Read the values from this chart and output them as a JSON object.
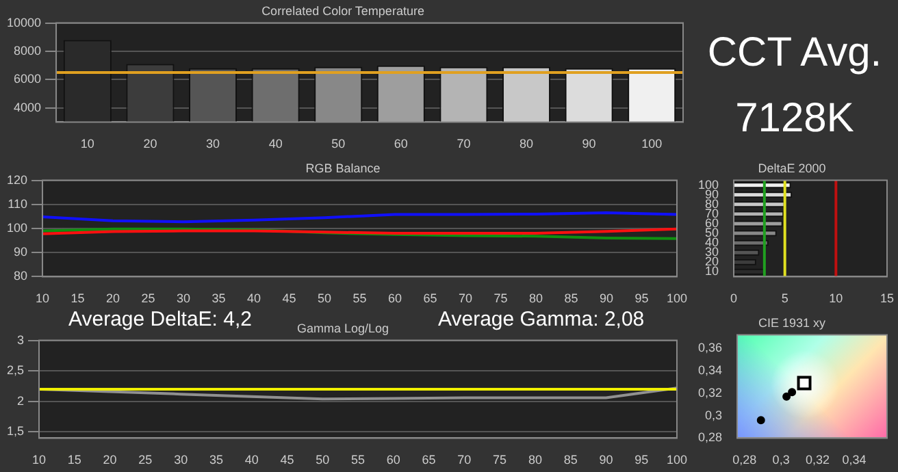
{
  "chart_data": [
    {
      "type": "bar",
      "title": "Correlated Color Temperature",
      "categories": [
        "10",
        "20",
        "30",
        "40",
        "50",
        "60",
        "70",
        "80",
        "90",
        "100"
      ],
      "values": [
        8800,
        7100,
        6800,
        6800,
        6900,
        7000,
        6900,
        6900,
        6800,
        6800
      ],
      "colors": [
        "#2a2a2a",
        "#3c3c3c",
        "#555555",
        "#6e6e6e",
        "#888888",
        "#9e9e9e",
        "#b4b4b4",
        "#c8c8c8",
        "#dcdcdc",
        "#f0f0f0"
      ],
      "ylim": [
        3000,
        10000
      ],
      "yticks": [
        4000,
        6000,
        8000,
        10000
      ],
      "grid": "y",
      "ref_lines": [
        {
          "axis": "y",
          "value": 6500,
          "color": "#e0a020"
        }
      ]
    },
    {
      "type": "other",
      "title": "CCT Avg.",
      "subtitle": "7128K"
    },
    {
      "type": "line",
      "title": "RGB Balance",
      "x": [
        10,
        20,
        30,
        40,
        50,
        60,
        70,
        80,
        90,
        100
      ],
      "xlim": [
        10,
        100
      ],
      "xticks": [
        10,
        15,
        20,
        25,
        30,
        35,
        40,
        45,
        50,
        55,
        60,
        65,
        70,
        75,
        80,
        85,
        90,
        95,
        100
      ],
      "ylim": [
        80,
        120
      ],
      "yticks": [
        80,
        90,
        100,
        110,
        120
      ],
      "grid": "y",
      "marker": "none",
      "line_style": "solid",
      "series": [
        {
          "color": "#1010ff",
          "values": [
            104.8,
            103.2,
            102.8,
            103.5,
            104.5,
            105.8,
            105.8,
            106,
            106.5,
            105.8
          ]
        },
        {
          "color": "#ff1010",
          "values": [
            97.8,
            98.7,
            99,
            99,
            98.5,
            98,
            98,
            98,
            98.8,
            99.8
          ]
        },
        {
          "color": "#109010",
          "values": [
            99,
            99.8,
            99.8,
            99.4,
            98.2,
            97.5,
            97,
            96.8,
            96,
            95.8
          ]
        }
      ]
    },
    {
      "type": "bar",
      "orientation": "horizontal",
      "title": "DeltaE 2000",
      "categories": [
        "100",
        "90",
        "80",
        "70",
        "60",
        "50",
        "40",
        "30",
        "20",
        "10"
      ],
      "values": [
        5.6,
        5.7,
        5.0,
        4.9,
        4.8,
        4.2,
        3.4,
        2.5,
        2.2,
        3.0
      ],
      "colors": [
        "#f0f0f0",
        "#dcdcdc",
        "#c8c8c8",
        "#b4b4b4",
        "#9e9e9e",
        "#888888",
        "#6e6e6e",
        "#555555",
        "#3c3c3c",
        "#2a2a2a"
      ],
      "xlim": [
        0,
        15
      ],
      "xticks": [
        0,
        5,
        10,
        15
      ],
      "grid": false,
      "ref_lines": [
        {
          "axis": "x",
          "value": 3,
          "color": "#20a020"
        },
        {
          "axis": "x",
          "value": 5,
          "color": "#e0e020"
        },
        {
          "axis": "x",
          "value": 10,
          "color": "#c01010"
        }
      ]
    },
    {
      "type": "line",
      "title": "Gamma Log/Log",
      "annotations": [
        "Average DeltaE: 4,2",
        "Average Gamma: 2,08"
      ],
      "x": [
        10,
        20,
        30,
        40,
        50,
        60,
        70,
        80,
        90,
        100
      ],
      "xlim": [
        10,
        100
      ],
      "xticks": [
        10,
        15,
        20,
        25,
        30,
        35,
        40,
        45,
        50,
        55,
        60,
        65,
        70,
        75,
        80,
        85,
        90,
        95,
        100
      ],
      "ylim": [
        1.4,
        3
      ],
      "yticks": [
        {
          "value": 1.5,
          "label": "1,5"
        },
        2,
        {
          "value": 2.5,
          "label": "2,5"
        },
        3
      ],
      "grid": "y",
      "marker": "none",
      "line_style": "solid",
      "series": [
        {
          "color": "#909090",
          "values": [
            2.2,
            2.16,
            2.12,
            2.08,
            2.04,
            2.05,
            2.06,
            2.06,
            2.06,
            2.22
          ]
        }
      ],
      "ref_lines": [
        {
          "axis": "y",
          "value": 2.2,
          "color": "#f0f000"
        }
      ]
    },
    {
      "type": "scatter",
      "title": "CIE 1931 xy",
      "xlim": [
        0.276,
        0.358
      ],
      "xticks": [
        {
          "value": 0.28,
          "label": "0,28"
        },
        {
          "value": 0.3,
          "label": "0,3"
        },
        {
          "value": 0.32,
          "label": "0,32"
        },
        {
          "value": 0.34,
          "label": "0,34"
        }
      ],
      "ylim": [
        0.28,
        0.372
      ],
      "yticks": [
        {
          "value": 0.28,
          "label": "0,28"
        },
        {
          "value": 0.3,
          "label": "0,3"
        },
        {
          "value": 0.32,
          "label": "0,32"
        },
        {
          "value": 0.34,
          "label": "0,34"
        },
        {
          "value": 0.36,
          "label": "0,36"
        }
      ],
      "grid": false,
      "series": [
        {
          "color": "#000000",
          "marker": "square",
          "x": [
            0.3127
          ],
          "values": [
            0.329
          ]
        },
        {
          "color": "#000000",
          "marker": "circle",
          "x": [
            0.303,
            0.306,
            0.289
          ],
          "values": [
            0.317,
            0.321,
            0.296
          ]
        }
      ]
    }
  ]
}
